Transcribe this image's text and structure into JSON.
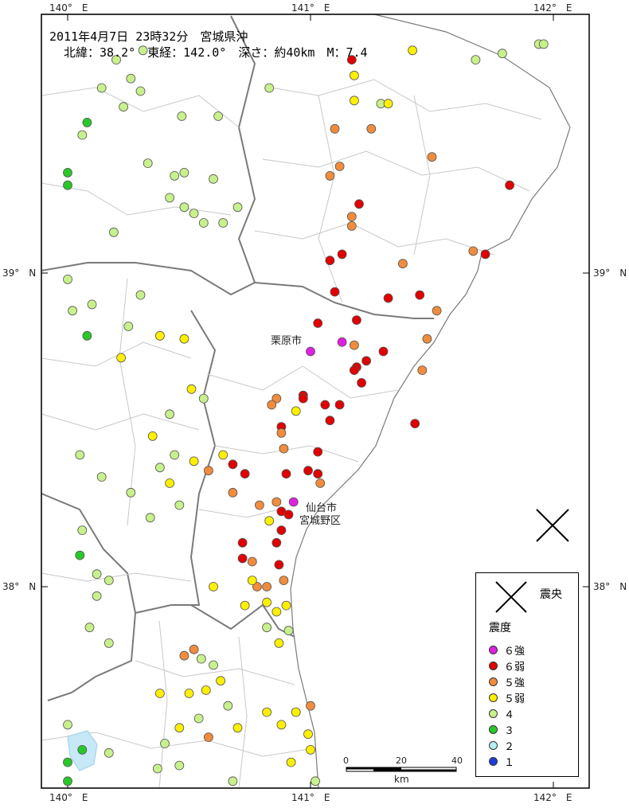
{
  "title": {
    "line1": "2011年4月7日 23時32分　宮城県沖",
    "line2": "北緯：38.2°　東経：142.0°　深さ：約40km　M：7.4"
  },
  "axis_labels": {
    "lon": [
      "140°　E",
      "141°　E",
      "142°　E"
    ],
    "lat": [
      "39°　N",
      "38°　N"
    ]
  },
  "places": {
    "kurihara": "栗原市",
    "sendai1": "仙台市",
    "sendai2": "宮城野区"
  },
  "legend": {
    "epicenter": "震央",
    "intensity_title": "震度",
    "items": [
      {
        "label": "６強",
        "color": "#e020e0"
      },
      {
        "label": "６弱",
        "color": "#e00000"
      },
      {
        "label": "５強",
        "color": "#f08c3c"
      },
      {
        "label": "５弱",
        "color": "#ffef00"
      },
      {
        "label": "４",
        "color": "#c8f08c"
      },
      {
        "label": "３",
        "color": "#28c828"
      },
      {
        "label": "２",
        "color": "#b4f0f0"
      },
      {
        "label": "１",
        "color": "#1e3cdc"
      }
    ]
  },
  "scale": {
    "ticks": [
      "0",
      "20",
      "40"
    ],
    "unit": "km"
  },
  "epicenter": {
    "lon": 142.0,
    "lat": 38.2
  },
  "stations": [
    {
      "lon": 140.31,
      "lat": 39.71,
      "c": "4"
    },
    {
      "lon": 140.3,
      "lat": 39.58,
      "c": "4"
    },
    {
      "lon": 140.47,
      "lat": 39.5,
      "c": "4"
    },
    {
      "lon": 140.83,
      "lat": 39.59,
      "c": "4"
    },
    {
      "lon": 140.44,
      "lat": 39.31,
      "c": "4"
    },
    {
      "lon": 140.33,
      "lat": 39.35,
      "c": "4"
    },
    {
      "lon": 140.7,
      "lat": 39.21,
      "c": "4"
    },
    {
      "lon": 140.64,
      "lat": 39.16,
      "c": "4"
    },
    {
      "lon": 140.48,
      "lat": 39.21,
      "c": "4"
    },
    {
      "lon": 140.48,
      "lat": 39.32,
      "c": "4"
    },
    {
      "lon": 140.6,
      "lat": 39.3,
      "c": "4"
    },
    {
      "lon": 140.14,
      "lat": 39.59,
      "c": "4"
    },
    {
      "lon": 140.06,
      "lat": 39.44,
      "c": "4"
    },
    {
      "lon": 140.19,
      "lat": 39.13,
      "c": "4"
    },
    {
      "lon": 140.23,
      "lat": 39.53,
      "c": "4"
    },
    {
      "lon": 140.56,
      "lat": 39.16,
      "c": "4"
    },
    {
      "lon": 140.52,
      "lat": 39.19,
      "c": "4"
    },
    {
      "lon": 140.26,
      "lat": 39.62,
      "c": "4"
    },
    {
      "lon": 140.2,
      "lat": 39.68,
      "c": "4"
    },
    {
      "lon": 140.62,
      "lat": 39.5,
      "c": "4"
    },
    {
      "lon": 140.42,
      "lat": 39.24,
      "c": "4"
    },
    {
      "lon": 140.08,
      "lat": 39.48,
      "c": "3"
    },
    {
      "lon": 140.0,
      "lat": 39.28,
      "c": "3"
    },
    {
      "lon": 140.0,
      "lat": 39.32,
      "c": "3"
    },
    {
      "lon": 140.0,
      "lat": 38.98,
      "c": "4"
    },
    {
      "lon": 140.02,
      "lat": 38.88,
      "c": "4"
    },
    {
      "lon": 140.1,
      "lat": 38.9,
      "c": "4"
    },
    {
      "lon": 140.08,
      "lat": 38.8,
      "c": "3"
    },
    {
      "lon": 140.3,
      "lat": 38.93,
      "c": "4"
    },
    {
      "lon": 140.25,
      "lat": 38.83,
      "c": "4"
    },
    {
      "lon": 140.22,
      "lat": 38.73,
      "c": "5-"
    },
    {
      "lon": 140.38,
      "lat": 38.8,
      "c": "5-"
    },
    {
      "lon": 140.48,
      "lat": 38.79,
      "c": "5-"
    },
    {
      "lon": 140.51,
      "lat": 38.63,
      "c": "5-"
    },
    {
      "lon": 140.56,
      "lat": 38.6,
      "c": "4"
    },
    {
      "lon": 140.42,
      "lat": 38.55,
      "c": "4"
    },
    {
      "lon": 140.35,
      "lat": 38.48,
      "c": "5-"
    },
    {
      "lon": 140.44,
      "lat": 38.42,
      "c": "4"
    },
    {
      "lon": 140.38,
      "lat": 38.38,
      "c": "4"
    },
    {
      "lon": 140.42,
      "lat": 38.33,
      "c": "5-"
    },
    {
      "lon": 140.46,
      "lat": 38.26,
      "c": "4"
    },
    {
      "lon": 140.34,
      "lat": 38.22,
      "c": "4"
    },
    {
      "lon": 140.26,
      "lat": 38.3,
      "c": "4"
    },
    {
      "lon": 140.14,
      "lat": 38.35,
      "c": "4"
    },
    {
      "lon": 140.05,
      "lat": 38.42,
      "c": "4"
    },
    {
      "lon": 140.52,
      "lat": 38.4,
      "c": "5-"
    },
    {
      "lon": 140.64,
      "lat": 38.42,
      "c": "5-"
    },
    {
      "lon": 140.58,
      "lat": 38.37,
      "c": "5+"
    },
    {
      "lon": 140.68,
      "lat": 38.3,
      "c": "5+"
    },
    {
      "lon": 140.73,
      "lat": 38.36,
      "c": "6-"
    },
    {
      "lon": 140.79,
      "lat": 38.26,
      "c": "5+"
    },
    {
      "lon": 140.86,
      "lat": 38.27,
      "c": "5+"
    },
    {
      "lon": 140.88,
      "lat": 38.24,
      "c": "6-"
    },
    {
      "lon": 140.91,
      "lat": 38.23,
      "c": "6-"
    },
    {
      "lon": 140.93,
      "lat": 38.27,
      "c": "6+"
    },
    {
      "lon": 140.83,
      "lat": 38.21,
      "c": "5-"
    },
    {
      "lon": 140.88,
      "lat": 38.18,
      "c": "6-"
    },
    {
      "lon": 140.72,
      "lat": 38.14,
      "c": "6-"
    },
    {
      "lon": 140.76,
      "lat": 38.08,
      "c": "5+"
    },
    {
      "lon": 140.86,
      "lat": 38.14,
      "c": "6-"
    },
    {
      "lon": 140.87,
      "lat": 38.07,
      "c": "6-"
    },
    {
      "lon": 140.89,
      "lat": 38.02,
      "c": "5+"
    },
    {
      "lon": 140.78,
      "lat": 38.0,
      "c": "5+"
    },
    {
      "lon": 140.82,
      "lat": 38.0,
      "c": "5+"
    },
    {
      "lon": 140.72,
      "lat": 38.09,
      "c": "6-"
    },
    {
      "lon": 140.76,
      "lat": 38.02,
      "c": "5-"
    },
    {
      "lon": 140.6,
      "lat": 38.0,
      "c": "5-"
    },
    {
      "lon": 140.73,
      "lat": 37.94,
      "c": "5-"
    },
    {
      "lon": 140.82,
      "lat": 37.95,
      "c": "5-"
    },
    {
      "lon": 140.9,
      "lat": 37.94,
      "c": "5-"
    },
    {
      "lon": 140.86,
      "lat": 37.92,
      "c": "5-"
    },
    {
      "lon": 140.87,
      "lat": 37.82,
      "c": "5-"
    },
    {
      "lon": 140.82,
      "lat": 37.87,
      "c": "4"
    },
    {
      "lon": 140.91,
      "lat": 37.86,
      "c": "4"
    },
    {
      "lon": 140.48,
      "lat": 37.78,
      "c": "5+"
    },
    {
      "lon": 140.52,
      "lat": 37.8,
      "c": "5+"
    },
    {
      "lon": 140.55,
      "lat": 37.77,
      "c": "4"
    },
    {
      "lon": 140.6,
      "lat": 37.75,
      "c": "4"
    },
    {
      "lon": 140.63,
      "lat": 37.7,
      "c": "5-"
    },
    {
      "lon": 140.57,
      "lat": 37.67,
      "c": "5-"
    },
    {
      "lon": 140.5,
      "lat": 37.66,
      "c": "5-"
    },
    {
      "lon": 140.66,
      "lat": 37.62,
      "c": "4"
    },
    {
      "lon": 140.54,
      "lat": 37.58,
      "c": "4"
    },
    {
      "lon": 140.46,
      "lat": 37.55,
      "c": "5-"
    },
    {
      "lon": 140.58,
      "lat": 37.52,
      "c": "5+"
    },
    {
      "lon": 140.7,
      "lat": 37.55,
      "c": "5-"
    },
    {
      "lon": 140.82,
      "lat": 37.6,
      "c": "5-"
    },
    {
      "lon": 140.88,
      "lat": 37.56,
      "c": "5-"
    },
    {
      "lon": 140.94,
      "lat": 37.6,
      "c": "5-"
    },
    {
      "lon": 141.0,
      "lat": 37.62,
      "c": "5+"
    },
    {
      "lon": 140.99,
      "lat": 37.53,
      "c": "5-"
    },
    {
      "lon": 141.0,
      "lat": 37.48,
      "c": "5-"
    },
    {
      "lon": 140.92,
      "lat": 37.44,
      "c": "5-"
    },
    {
      "lon": 140.4,
      "lat": 37.5,
      "c": "4"
    },
    {
      "lon": 140.46,
      "lat": 37.43,
      "c": "4"
    },
    {
      "lon": 140.37,
      "lat": 37.42,
      "c": "4"
    },
    {
      "lon": 140.17,
      "lat": 37.47,
      "c": "4"
    },
    {
      "lon": 140.06,
      "lat": 37.48,
      "c": "3"
    },
    {
      "lon": 140.0,
      "lat": 37.44,
      "c": "3"
    },
    {
      "lon": 140.0,
      "lat": 37.38,
      "c": "3"
    },
    {
      "lon": 140.0,
      "lat": 37.56,
      "c": "4"
    },
    {
      "lon": 140.09,
      "lat": 37.87,
      "c": "4"
    },
    {
      "lon": 140.17,
      "lat": 37.82,
      "c": "4"
    },
    {
      "lon": 140.12,
      "lat": 37.97,
      "c": "4"
    },
    {
      "lon": 140.05,
      "lat": 38.1,
      "c": "3"
    },
    {
      "lon": 140.17,
      "lat": 38.02,
      "c": "4"
    },
    {
      "lon": 140.06,
      "lat": 38.18,
      "c": "4"
    },
    {
      "lon": 140.12,
      "lat": 38.04,
      "c": "4"
    },
    {
      "lon": 140.38,
      "lat": 37.66,
      "c": "5-"
    },
    {
      "lon": 140.24,
      "lat": 37.28,
      "c": "4"
    },
    {
      "lon": 140.29,
      "lat": 37.23,
      "c": "4"
    },
    {
      "lon": 140.48,
      "lat": 37.29,
      "c": "4"
    },
    {
      "lon": 140.54,
      "lat": 37.35,
      "c": "4"
    },
    {
      "lon": 140.61,
      "lat": 37.32,
      "c": "4"
    },
    {
      "lon": 140.68,
      "lat": 37.38,
      "c": "4"
    },
    {
      "lon": 140.8,
      "lat": 37.3,
      "c": "4"
    },
    {
      "lon": 140.9,
      "lat": 37.3,
      "c": "4"
    },
    {
      "lon": 140.97,
      "lat": 37.32,
      "c": "4"
    },
    {
      "lon": 141.02,
      "lat": 37.38,
      "c": "4"
    },
    {
      "lon": 140.35,
      "lat": 37.35,
      "c": "5-"
    },
    {
      "lon": 140.55,
      "lat": 37.22,
      "c": "5+"
    },
    {
      "lon": 140.7,
      "lat": 37.26,
      "c": "5-"
    },
    {
      "lon": 141.17,
      "lat": 39.68,
      "c": "6-"
    },
    {
      "lon": 141.18,
      "lat": 39.63,
      "c": "5-"
    },
    {
      "lon": 141.18,
      "lat": 39.55,
      "c": "5-"
    },
    {
      "lon": 141.29,
      "lat": 39.54,
      "c": "4"
    },
    {
      "lon": 141.32,
      "lat": 39.54,
      "c": "5-"
    },
    {
      "lon": 141.1,
      "lat": 39.46,
      "c": "5+"
    },
    {
      "lon": 141.25,
      "lat": 39.46,
      "c": "5+"
    },
    {
      "lon": 141.12,
      "lat": 39.34,
      "c": "5+"
    },
    {
      "lon": 141.08,
      "lat": 39.31,
      "c": "5+"
    },
    {
      "lon": 141.2,
      "lat": 39.22,
      "c": "6-"
    },
    {
      "lon": 141.17,
      "lat": 39.18,
      "c": "5+"
    },
    {
      "lon": 141.17,
      "lat": 39.15,
      "c": "5+"
    },
    {
      "lon": 141.08,
      "lat": 39.04,
      "c": "6-"
    },
    {
      "lon": 141.13,
      "lat": 39.06,
      "c": "6-"
    },
    {
      "lon": 141.38,
      "lat": 39.03,
      "c": "5+"
    },
    {
      "lon": 141.1,
      "lat": 38.94,
      "c": "6-"
    },
    {
      "lon": 141.32,
      "lat": 38.92,
      "c": "6-"
    },
    {
      "lon": 141.45,
      "lat": 38.93,
      "c": "6-"
    },
    {
      "lon": 141.52,
      "lat": 38.88,
      "c": "5+"
    },
    {
      "lon": 141.48,
      "lat": 38.79,
      "c": "5+"
    },
    {
      "lon": 141.03,
      "lat": 38.84,
      "c": "6-"
    },
    {
      "lon": 141.13,
      "lat": 38.78,
      "c": "6+"
    },
    {
      "lon": 141.0,
      "lat": 38.75,
      "c": "6+"
    },
    {
      "lon": 141.18,
      "lat": 38.77,
      "c": "5+"
    },
    {
      "lon": 141.19,
      "lat": 38.85,
      "c": "6-"
    },
    {
      "lon": 141.3,
      "lat": 38.75,
      "c": "6-"
    },
    {
      "lon": 141.23,
      "lat": 38.72,
      "c": "6-"
    },
    {
      "lon": 141.19,
      "lat": 38.7,
      "c": "6-"
    },
    {
      "lon": 141.18,
      "lat": 38.69,
      "c": "6-"
    },
    {
      "lon": 141.21,
      "lat": 38.65,
      "c": "6-"
    },
    {
      "lon": 141.46,
      "lat": 38.69,
      "c": "5+"
    },
    {
      "lon": 141.67,
      "lat": 39.07,
      "c": "5+"
    },
    {
      "lon": 141.72,
      "lat": 39.06,
      "c": "6-"
    },
    {
      "lon": 141.82,
      "lat": 39.28,
      "c": "6-"
    },
    {
      "lon": 141.5,
      "lat": 39.37,
      "c": "5+"
    },
    {
      "lon": 141.94,
      "lat": 39.73,
      "c": "4"
    },
    {
      "lon": 141.96,
      "lat": 39.73,
      "c": "4"
    },
    {
      "lon": 141.79,
      "lat": 39.7,
      "c": "4"
    },
    {
      "lon": 141.68,
      "lat": 39.68,
      "c": "4"
    },
    {
      "lon": 141.42,
      "lat": 39.71,
      "c": "5-"
    },
    {
      "lon": 141.33,
      "lat": 39.86,
      "c": "5+"
    },
    {
      "lon": 141.43,
      "lat": 38.52,
      "c": "6-"
    },
    {
      "lon": 141.12,
      "lat": 38.58,
      "c": "6-"
    },
    {
      "lon": 141.08,
      "lat": 38.53,
      "c": "6-"
    },
    {
      "lon": 141.06,
      "lat": 38.58,
      "c": "6-"
    },
    {
      "lon": 140.97,
      "lat": 38.61,
      "c": "6-"
    },
    {
      "lon": 140.97,
      "lat": 38.6,
      "c": "6-"
    },
    {
      "lon": 140.94,
      "lat": 38.56,
      "c": "5-"
    },
    {
      "lon": 140.86,
      "lat": 38.6,
      "c": "5+"
    },
    {
      "lon": 140.84,
      "lat": 38.58,
      "c": "5+"
    },
    {
      "lon": 140.88,
      "lat": 38.51,
      "c": "6-"
    },
    {
      "lon": 140.88,
      "lat": 38.49,
      "c": "5+"
    },
    {
      "lon": 140.89,
      "lat": 38.44,
      "c": "5+"
    },
    {
      "lon": 141.03,
      "lat": 38.43,
      "c": "6-"
    },
    {
      "lon": 140.99,
      "lat": 38.37,
      "c": "6-"
    },
    {
      "lon": 141.03,
      "lat": 38.36,
      "c": "6-"
    },
    {
      "lon": 141.04,
      "lat": 38.33,
      "c": "5+"
    },
    {
      "lon": 140.68,
      "lat": 38.39,
      "c": "6-"
    },
    {
      "lon": 140.9,
      "lat": 38.36,
      "c": "6-"
    }
  ]
}
